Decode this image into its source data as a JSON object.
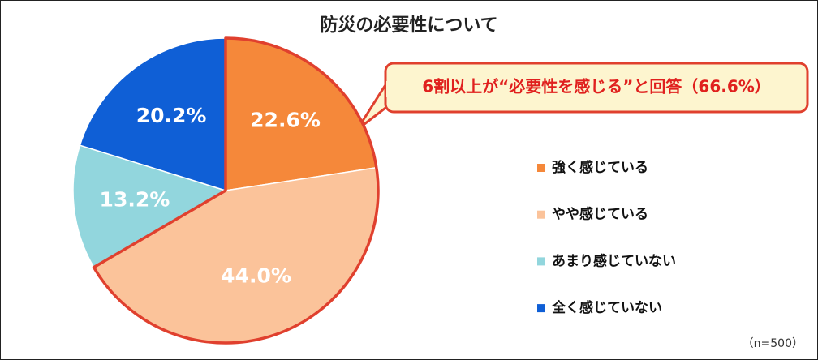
{
  "chart_data": {
    "type": "pie",
    "title": "防災の必要性について",
    "categories": [
      "強く感じている",
      "やや感じている",
      "あまり感じていない",
      "全く感じていない"
    ],
    "values": [
      22.6,
      44.0,
      13.2,
      20.2
    ],
    "value_labels": [
      "22.6%",
      "44.0%",
      "13.2%",
      "20.2%"
    ],
    "colors": [
      "#f5883a",
      "#fbc39a",
      "#92d6dd",
      "#0f5fd6"
    ],
    "annotation": "6割以上が“必要性を感じる”と回答（66.6%）",
    "note": "（n=500）",
    "legend": "right"
  }
}
